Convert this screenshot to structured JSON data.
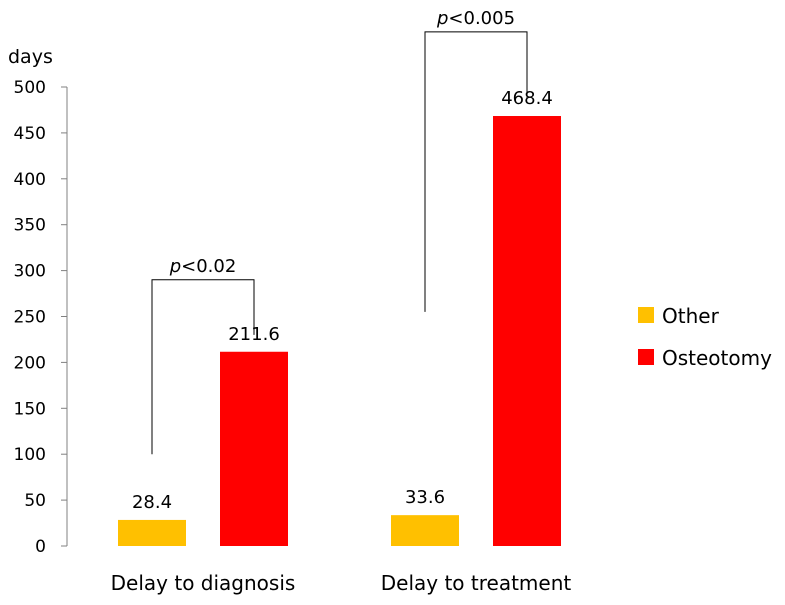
{
  "chart_data": {
    "type": "bar",
    "title": "",
    "ylabel": "days",
    "xlabel": "",
    "ylim": [
      0,
      500
    ],
    "yticks": [
      0,
      50,
      100,
      150,
      200,
      250,
      300,
      350,
      400,
      450,
      500
    ],
    "grid": false,
    "legend_position": "right",
    "categories": [
      "Delay to diagnosis",
      "Delay to treatment"
    ],
    "series": [
      {
        "name": "Other",
        "color": "#FFC000",
        "values": [
          28.4,
          33.6
        ],
        "labels": [
          "28.4",
          "33.6"
        ]
      },
      {
        "name": "Osteotomy",
        "color": "#FF0000",
        "values": [
          211.6,
          468.4
        ],
        "labels": [
          "211.6",
          "468.4"
        ]
      }
    ],
    "annotations": [
      {
        "category": "Delay to diagnosis",
        "p_symbol": "p",
        "text": "<0.02",
        "bracket_from": 100,
        "bracket_to": 230,
        "bracket_top": 290
      },
      {
        "category": "Delay to treatment",
        "p_symbol": "p",
        "text": "<0.005",
        "bracket_from": 255,
        "bracket_to": 488,
        "bracket_top": 560
      }
    ]
  }
}
